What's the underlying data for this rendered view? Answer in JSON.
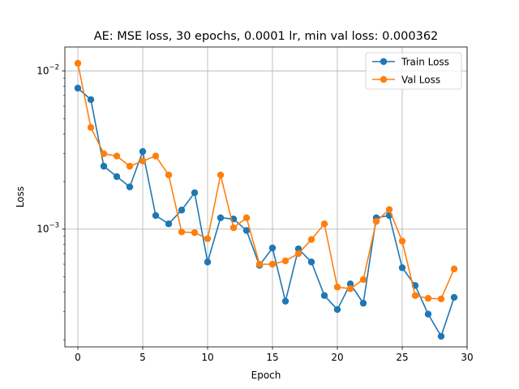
{
  "chart_data": {
    "type": "line",
    "title": "AE: MSE loss, 30 epochs, 0.0001 lr, min val loss: 0.000362",
    "xlabel": "Epoch",
    "ylabel": "Loss",
    "yscale": "log",
    "xlim": [
      -1,
      30
    ],
    "ylim": [
      0.00018,
      0.0142
    ],
    "xticks": [
      0,
      5,
      10,
      15,
      20,
      25,
      30
    ],
    "yticks": [
      {
        "value": 0.001,
        "label": "10",
        "exp": "−3"
      },
      {
        "value": 0.01,
        "label": "10",
        "exp": "−2"
      }
    ],
    "grid": true,
    "legend_position": "top-right",
    "x": [
      0,
      1,
      2,
      3,
      4,
      5,
      6,
      7,
      8,
      9,
      10,
      11,
      12,
      13,
      14,
      15,
      16,
      17,
      18,
      19,
      20,
      21,
      22,
      23,
      24,
      25,
      26,
      27,
      28,
      29
    ],
    "series": [
      {
        "name": "Train Loss",
        "color": "#1f77b4",
        "values": [
          0.0078,
          0.0066,
          0.0025,
          0.00215,
          0.00185,
          0.0031,
          0.00122,
          0.00108,
          0.00132,
          0.0017,
          0.00062,
          0.00118,
          0.00116,
          0.00098,
          0.00059,
          0.00076,
          0.00035,
          0.00075,
          0.00062,
          0.00038,
          0.00031,
          0.00045,
          0.00034,
          0.00118,
          0.00122,
          0.00057,
          0.00044,
          0.00029,
          0.00021,
          0.00037
        ]
      },
      {
        "name": "Val Loss",
        "color": "#ff7f0e",
        "values": [
          0.0112,
          0.0044,
          0.003,
          0.0029,
          0.0025,
          0.0027,
          0.0029,
          0.0022,
          0.00096,
          0.00095,
          0.00087,
          0.0022,
          0.00102,
          0.00118,
          0.0006,
          0.0006,
          0.00063,
          0.0007,
          0.00086,
          0.00108,
          0.00043,
          0.00042,
          0.00048,
          0.00112,
          0.00133,
          0.00084,
          0.00038,
          0.000365,
          0.000362,
          0.00056
        ]
      }
    ]
  }
}
